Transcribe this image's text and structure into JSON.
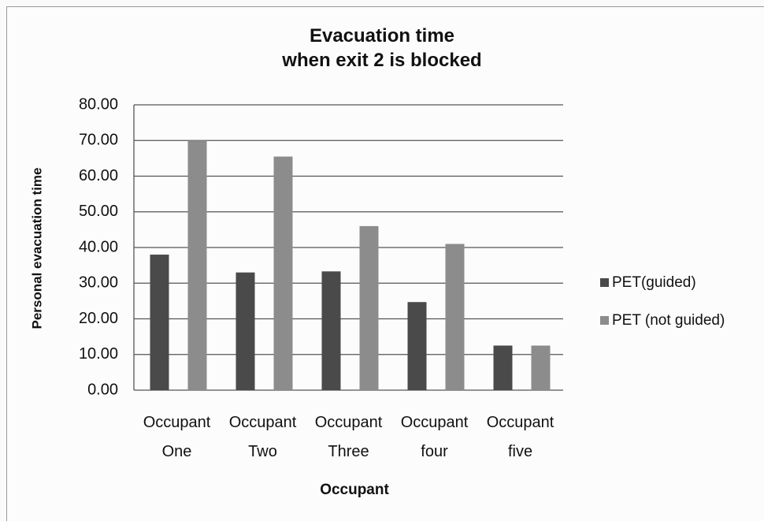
{
  "chart_data": {
    "type": "bar",
    "title": "Evacuation time\nwhen exit 2 is blocked",
    "x_label": "Occupant",
    "y_label": "Personal evacuation time",
    "categories": [
      "Occupant\nOne",
      "Occupant\nTwo",
      "Occupant\nThree",
      "Occupant\nfour",
      "Occupant\nfive"
    ],
    "series": [
      {
        "name": "PET(guided)",
        "color": "#4a4a4a",
        "values": [
          38,
          33,
          33.3,
          24.7,
          12.5
        ]
      },
      {
        "name": "PET (not guided)",
        "color": "#8c8c8c",
        "values": [
          70,
          65.5,
          46,
          41,
          12.5
        ]
      }
    ],
    "ylim": [
      0,
      80
    ],
    "yticks": [
      {
        "value": 0,
        "label": "0.00"
      },
      {
        "value": 10,
        "label": "10.00"
      },
      {
        "value": 20,
        "label": "20.00"
      },
      {
        "value": 30,
        "label": "30.00"
      },
      {
        "value": 40,
        "label": "40.00"
      },
      {
        "value": 50,
        "label": "50.00"
      },
      {
        "value": 60,
        "label": "60.00"
      },
      {
        "value": 70,
        "label": "70.00"
      },
      {
        "value": 80,
        "label": "80.00"
      }
    ],
    "grid": true,
    "legend": "right"
  }
}
